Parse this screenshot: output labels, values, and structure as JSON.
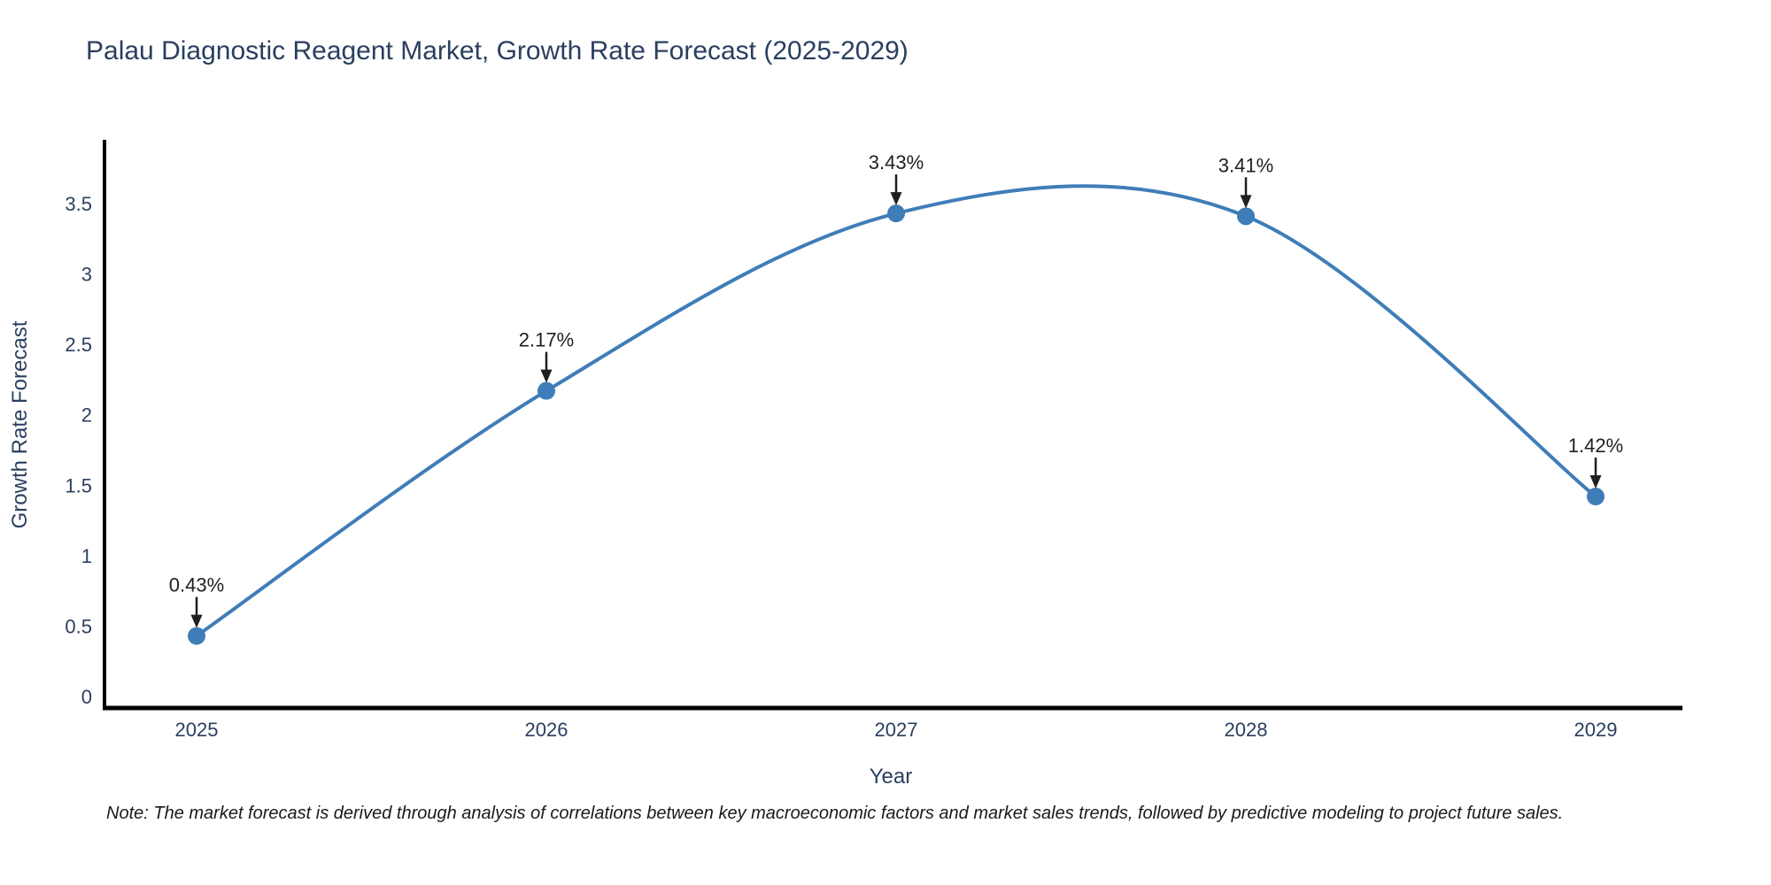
{
  "title": "Palau Diagnostic Reagent Market, Growth Rate Forecast (2025-2029)",
  "note": "Note: The market forecast is derived through analysis of correlations between key macroeconomic factors and market sales trends, followed by predictive modeling to project future sales.",
  "chart_data": {
    "type": "line",
    "title": "Palau Diagnostic Reagent Market, Growth Rate Forecast (2025-2029)",
    "xlabel": "Year",
    "ylabel": "Growth Rate Forecast",
    "categories": [
      "2025",
      "2026",
      "2027",
      "2028",
      "2029"
    ],
    "x": [
      2025,
      2026,
      2027,
      2028,
      2029
    ],
    "values": [
      0.43,
      2.17,
      3.43,
      3.41,
      1.42
    ],
    "point_labels": [
      "0.43%",
      "2.17%",
      "3.43%",
      "3.41%",
      "1.42%"
    ],
    "yticks": [
      0,
      0.5,
      1,
      1.5,
      2,
      2.5,
      3,
      3.5
    ],
    "ylim": [
      0,
      3.5
    ],
    "line_shape": "spline",
    "grid": false,
    "legend": false,
    "colors": {
      "line": "#3f7db8",
      "marker": "#3f7db8",
      "axis": "#000000",
      "tick_text": "#2a3f5f",
      "axis_title_text": "#2a3f5f",
      "annotation": "#1f1f1f"
    }
  }
}
